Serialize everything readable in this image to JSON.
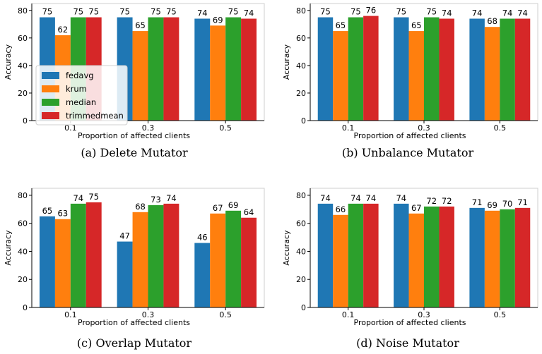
{
  "colors": {
    "fedavg": "#1f77b4",
    "krum": "#ff7f0e",
    "median": "#2ca02c",
    "trimmedmean": "#d62728"
  },
  "chart_data": [
    {
      "type": "bar",
      "caption": "(a) Delete Mutator",
      "categories": [
        "0.1",
        "0.3",
        "0.5"
      ],
      "xlabel": "Proportion of affected clients",
      "ylabel": "Accuracy",
      "ylim": [
        0,
        85
      ],
      "yticks": [
        0,
        20,
        40,
        60,
        80
      ],
      "grid": false,
      "legend": "center-left",
      "series": [
        {
          "name": "fedavg",
          "values": [
            75,
            75,
            74
          ]
        },
        {
          "name": "krum",
          "values": [
            62,
            65,
            69
          ]
        },
        {
          "name": "median",
          "values": [
            75,
            75,
            75
          ]
        },
        {
          "name": "trimmedmean",
          "values": [
            75,
            75,
            74
          ]
        }
      ]
    },
    {
      "type": "bar",
      "caption": "(b) Unbalance Mutator",
      "categories": [
        "0.1",
        "0.3",
        "0.5"
      ],
      "xlabel": "Proportion of affected clients",
      "ylabel": "Accuracy",
      "ylim": [
        0,
        85
      ],
      "yticks": [
        0,
        20,
        40,
        60,
        80
      ],
      "grid": false,
      "legend": "none",
      "series": [
        {
          "name": "fedavg",
          "values": [
            75,
            75,
            74
          ]
        },
        {
          "name": "krum",
          "values": [
            65,
            65,
            68
          ]
        },
        {
          "name": "median",
          "values": [
            75,
            75,
            74
          ]
        },
        {
          "name": "trimmedmean",
          "values": [
            76,
            74,
            74
          ]
        }
      ]
    },
    {
      "type": "bar",
      "caption": "(c) Overlap Mutator",
      "categories": [
        "0.1",
        "0.3",
        "0.5"
      ],
      "xlabel": "Proportion of affected clients",
      "ylabel": "Accuracy",
      "ylim": [
        0,
        85
      ],
      "yticks": [
        0,
        20,
        40,
        60,
        80
      ],
      "grid": false,
      "legend": "none",
      "series": [
        {
          "name": "fedavg",
          "values": [
            65,
            47,
            46
          ]
        },
        {
          "name": "krum",
          "values": [
            63,
            68,
            67
          ]
        },
        {
          "name": "median",
          "values": [
            74,
            73,
            69
          ]
        },
        {
          "name": "trimmedmean",
          "values": [
            75,
            74,
            64
          ]
        }
      ]
    },
    {
      "type": "bar",
      "caption": "(d) Noise Mutator",
      "categories": [
        "0.1",
        "0.3",
        "0.5"
      ],
      "xlabel": "Proportion of affected clients",
      "ylabel": "Accuracy",
      "ylim": [
        0,
        85
      ],
      "yticks": [
        0,
        20,
        40,
        60,
        80
      ],
      "grid": false,
      "legend": "none",
      "series": [
        {
          "name": "fedavg",
          "values": [
            74,
            74,
            71
          ]
        },
        {
          "name": "krum",
          "values": [
            66,
            67,
            69
          ]
        },
        {
          "name": "median",
          "values": [
            74,
            72,
            70
          ]
        },
        {
          "name": "trimmedmean",
          "values": [
            74,
            72,
            71
          ]
        }
      ]
    }
  ]
}
